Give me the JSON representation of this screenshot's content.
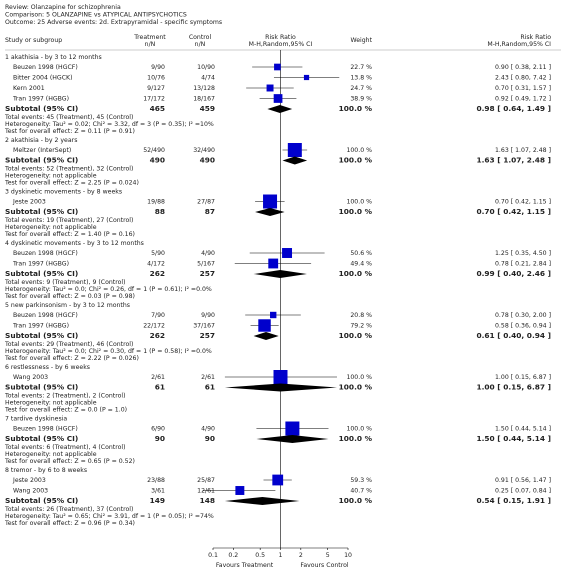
{
  "chart_data": {
    "type": "forest",
    "header": [
      "Review:  Olanzapine for schizophrenia",
      "Comparison:  5 OLANZAPINE vs ATYPICAL ANTIPSYCHOTICS",
      "Outcome:  25 Adverse events: 2d. Extrapyramidal - specific symptoms"
    ],
    "columns": {
      "study": "Study or subgroup",
      "treatment": [
        "Treatment",
        "n/N"
      ],
      "control": [
        "Control",
        "n/N"
      ],
      "plot": [
        "Risk Ratio",
        "M-H,Random,95% CI"
      ],
      "weight": "Weight",
      "ci": [
        "Risk Ratio",
        "M-H,Random,95% CI"
      ]
    },
    "subtotal_label": "Subtotal (95% CI)",
    "xlim": [
      0.1,
      10
    ],
    "log_x": true,
    "xticks": [
      0.1,
      0.2,
      0.5,
      1,
      2,
      5,
      10
    ],
    "xlabels": [
      "Favours Treatment",
      "Favours Control"
    ],
    "box_color": "#0000cc",
    "diamond_color": "#000000",
    "groups": [
      {
        "title": "1 akathisia - by 3 to 12 months",
        "studies": [
          {
            "name": "Beuzen 1998 (HGCF)",
            "treatment": "9/90",
            "control": "10/90",
            "weight": 22.7,
            "weight_label": "22.7 %",
            "rr": 0.9,
            "lo": 0.38,
            "hi": 2.11,
            "ci_label": "0.90 [ 0.38, 2.11 ]"
          },
          {
            "name": "Bitter 2004 (HGCK)",
            "treatment": "10/76",
            "control": "4/74",
            "weight": 13.8,
            "weight_label": "13.8 %",
            "rr": 2.43,
            "lo": 0.8,
            "hi": 7.42,
            "ci_label": "2.43 [ 0.80, 7.42 ]"
          },
          {
            "name": "Kern 2001",
            "treatment": "9/127",
            "control": "13/128",
            "weight": 24.7,
            "weight_label": "24.7 %",
            "rr": 0.7,
            "lo": 0.31,
            "hi": 1.57,
            "ci_label": "0.70 [ 0.31, 1.57 ]"
          },
          {
            "name": "Tran 1997 (HGBG)",
            "treatment": "17/172",
            "control": "18/167",
            "weight": 38.9,
            "weight_label": "38.9 %",
            "rr": 0.92,
            "lo": 0.49,
            "hi": 1.72,
            "ci_label": "0.92 [ 0.49, 1.72 ]"
          }
        ],
        "subtotal": {
          "treatment": 465,
          "control": 459,
          "weight_label": "100.0 %",
          "rr": 0.98,
          "lo": 0.64,
          "hi": 1.49,
          "ci_label": "0.98 [ 0.64, 1.49 ]"
        },
        "notes": [
          "Total events: 45 (Treatment), 45 (Control)",
          "Heterogeneity: Tau² = 0.02; Chi² = 3.32, df = 3 (P = 0.35); I² =10%",
          "Test for overall effect: Z = 0.11 (P = 0.91)"
        ]
      },
      {
        "title": "2 akathisia - by 2 years",
        "studies": [
          {
            "name": "Meltzer (InterSept)",
            "treatment": "52/490",
            "control": "32/490",
            "weight": 100.0,
            "weight_label": "100.0 %",
            "rr": 1.63,
            "lo": 1.07,
            "hi": 2.48,
            "ci_label": "1.63 [ 1.07, 2.48 ]"
          }
        ],
        "subtotal": {
          "treatment": 490,
          "control": 490,
          "weight_label": "100.0 %",
          "rr": 1.63,
          "lo": 1.07,
          "hi": 2.48,
          "ci_label": "1.63 [ 1.07, 2.48 ]"
        },
        "notes": [
          "Total events: 52 (Treatment), 32 (Control)",
          "Heterogeneity: not applicable",
          "Test for overall effect: Z = 2.25 (P = 0.024)"
        ]
      },
      {
        "title": "3 dyskinetic movements - by 8 weeks",
        "studies": [
          {
            "name": "Jeste 2003",
            "treatment": "19/88",
            "control": "27/87",
            "weight": 100.0,
            "weight_label": "100.0 %",
            "rr": 0.7,
            "lo": 0.42,
            "hi": 1.15,
            "ci_label": "0.70 [ 0.42, 1.15 ]"
          }
        ],
        "subtotal": {
          "treatment": 88,
          "control": 87,
          "weight_label": "100.0 %",
          "rr": 0.7,
          "lo": 0.42,
          "hi": 1.15,
          "ci_label": "0.70 [ 0.42, 1.15 ]"
        },
        "notes": [
          "Total events: 19 (Treatment), 27 (Control)",
          "Heterogeneity: not applicable",
          "Test for overall effect: Z = 1.40 (P = 0.16)"
        ]
      },
      {
        "title": "4 dyskinetic movements - by 3 to 12 months",
        "studies": [
          {
            "name": "Beuzen 1998 (HGCF)",
            "treatment": "5/90",
            "control": "4/90",
            "weight": 50.6,
            "weight_label": "50.6 %",
            "rr": 1.25,
            "lo": 0.35,
            "hi": 4.5,
            "ci_label": "1.25 [ 0.35, 4.50 ]"
          },
          {
            "name": "Tran 1997 (HGBG)",
            "treatment": "4/172",
            "control": "5/167",
            "weight": 49.4,
            "weight_label": "49.4 %",
            "rr": 0.78,
            "lo": 0.21,
            "hi": 2.84,
            "ci_label": "0.78 [ 0.21, 2.84 ]"
          }
        ],
        "subtotal": {
          "treatment": 262,
          "control": 257,
          "weight_label": "100.0 %",
          "rr": 0.99,
          "lo": 0.4,
          "hi": 2.46,
          "ci_label": "0.99 [ 0.40, 2.46 ]"
        },
        "notes": [
          "Total events: 9 (Treatment), 9 (Control)",
          "Heterogeneity: Tau² = 0.0; Chi² = 0.26, df = 1 (P = 0.61); I² =0.0%",
          "Test for overall effect: Z = 0.03 (P = 0.98)"
        ]
      },
      {
        "title": "5 new parkinsonism - by 3 to 12 months",
        "studies": [
          {
            "name": "Beuzen 1998 (HGCF)",
            "treatment": "7/90",
            "control": "9/90",
            "weight": 20.8,
            "weight_label": "20.8 %",
            "rr": 0.78,
            "lo": 0.3,
            "hi": 2.0,
            "ci_label": "0.78 [ 0.30, 2.00 ]"
          },
          {
            "name": "Tran 1997 (HGBG)",
            "treatment": "22/172",
            "control": "37/167",
            "weight": 79.2,
            "weight_label": "79.2 %",
            "rr": 0.58,
            "lo": 0.36,
            "hi": 0.94,
            "ci_label": "0.58 [ 0.36, 0.94 ]"
          }
        ],
        "subtotal": {
          "treatment": 262,
          "control": 257,
          "weight_label": "100.0 %",
          "rr": 0.61,
          "lo": 0.4,
          "hi": 0.94,
          "ci_label": "0.61 [ 0.40, 0.94 ]"
        },
        "notes": [
          "Total events: 29 (Treatment), 46 (Control)",
          "Heterogeneity: Tau² = 0.0; Chi² = 0.30, df = 1 (P = 0.58); I² =0.0%",
          "Test for overall effect: Z = 2.22 (P = 0.026)"
        ]
      },
      {
        "title": "6 restlessness - by 6 weeks",
        "studies": [
          {
            "name": "Wang 2003",
            "treatment": "2/61",
            "control": "2/61",
            "weight": 100.0,
            "weight_label": "100.0 %",
            "rr": 1.0,
            "lo": 0.15,
            "hi": 6.87,
            "ci_label": "1.00 [ 0.15, 6.87 ]"
          }
        ],
        "subtotal": {
          "treatment": 61,
          "control": 61,
          "weight_label": "100.0 %",
          "rr": 1.0,
          "lo": 0.15,
          "hi": 6.87,
          "ci_label": "1.00 [ 0.15, 6.87 ]"
        },
        "notes": [
          "Total events: 2 (Treatment), 2 (Control)",
          "Heterogeneity: not applicable",
          "Test for overall effect: Z = 0.0 (P = 1.0)"
        ]
      },
      {
        "title": "7 tardive dyskinesia",
        "studies": [
          {
            "name": "Beuzen 1998 (HGCF)",
            "treatment": "6/90",
            "control": "4/90",
            "weight": 100.0,
            "weight_label": "100.0 %",
            "rr": 1.5,
            "lo": 0.44,
            "hi": 5.14,
            "ci_label": "1.50 [ 0.44, 5.14 ]"
          }
        ],
        "subtotal": {
          "treatment": 90,
          "control": 90,
          "weight_label": "100.0 %",
          "rr": 1.5,
          "lo": 0.44,
          "hi": 5.14,
          "ci_label": "1.50 [ 0.44, 5.14 ]"
        },
        "notes": [
          "Total events: 6 (Treatment), 4 (Control)",
          "Heterogeneity: not applicable",
          "Test for overall effect: Z = 0.65 (P = 0.52)"
        ]
      },
      {
        "title": "8 tremor - by 6 to 8 weeks",
        "studies": [
          {
            "name": "Jeste 2003",
            "treatment": "23/88",
            "control": "25/87",
            "weight": 59.3,
            "weight_label": "59.3 %",
            "rr": 0.91,
            "lo": 0.56,
            "hi": 1.47,
            "ci_label": "0.91 [ 0.56, 1.47 ]"
          },
          {
            "name": "Wang 2003",
            "treatment": "3/61",
            "control": "12/61",
            "weight": 40.7,
            "weight_label": "40.7 %",
            "rr": 0.25,
            "lo": 0.07,
            "hi": 0.84,
            "ci_label": "0.25 [ 0.07, 0.84 ]"
          }
        ],
        "subtotal": {
          "treatment": 149,
          "control": 148,
          "weight_label": "100.0 %",
          "rr": 0.54,
          "lo": 0.15,
          "hi": 1.91,
          "ci_label": "0.54 [ 0.15, 1.91 ]"
        },
        "notes": [
          "Total events: 26 (Treatment), 37 (Control)",
          "Heterogeneity: Tau² = 0.65; Chi² = 3.91, df = 1 (P = 0.05); I² =74%",
          "Test for overall effect: Z = 0.96 (P = 0.34)"
        ]
      }
    ]
  }
}
